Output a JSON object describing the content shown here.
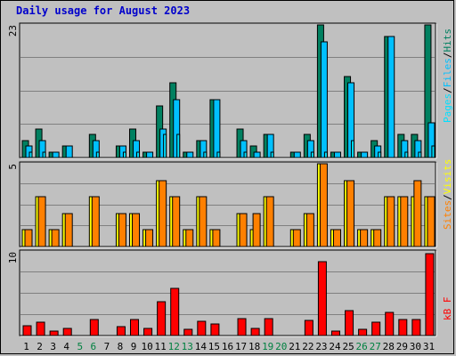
{
  "title": "Daily usage for August 2023",
  "colors": {
    "hits": "#008060",
    "files": "#00c0ff",
    "pages": "#00e0ff",
    "visits": "#ffff00",
    "sites": "#ff8000",
    "kbytes": "#ff0000",
    "weekday_label": "#000000",
    "weekend_label": "#008040"
  },
  "legend": {
    "panel1": [
      "Pages",
      "/",
      "Files",
      "/",
      "Hits"
    ],
    "panel2": [
      "Sites",
      "/",
      "Visits"
    ],
    "panel3": [
      "kB F"
    ]
  },
  "chart_data": [
    {
      "type": "bar",
      "name": "hits-files-pages",
      "ymax_label": "23",
      "ylim": [
        0,
        23
      ],
      "categories": [
        "1",
        "2",
        "3",
        "4",
        "5",
        "6",
        "7",
        "8",
        "9",
        "10",
        "11",
        "12",
        "13",
        "14",
        "15",
        "16",
        "17",
        "18",
        "19",
        "20",
        "21",
        "22",
        "23",
        "24",
        "25",
        "26",
        "27",
        "28",
        "29",
        "30",
        "31"
      ],
      "weekend_days": [
        5,
        6,
        12,
        13,
        19,
        20,
        26,
        27
      ],
      "series": [
        {
          "name": "Hits",
          "values": [
            3,
            5,
            1,
            2,
            0,
            4,
            0,
            2,
            5,
            1,
            9,
            13,
            1,
            3,
            10,
            0,
            5,
            2,
            4,
            0,
            1,
            4,
            23,
            1,
            14,
            1,
            3,
            21,
            4,
            4,
            23
          ]
        },
        {
          "name": "Files",
          "values": [
            2,
            3,
            1,
            2,
            0,
            3,
            0,
            2,
            3,
            1,
            5,
            10,
            1,
            3,
            10,
            0,
            3,
            1,
            4,
            0,
            1,
            3,
            20,
            1,
            13,
            1,
            2,
            21,
            3,
            3,
            6
          ]
        },
        {
          "name": "Pages",
          "values": [
            1,
            1,
            0,
            0,
            0,
            1,
            0,
            1,
            1,
            0,
            4,
            4,
            0,
            1,
            1,
            0,
            1,
            0,
            1,
            0,
            0,
            1,
            1,
            0,
            3,
            0,
            1,
            0,
            1,
            1,
            2
          ]
        }
      ]
    },
    {
      "type": "bar",
      "name": "visits-sites",
      "ymax_label": "5",
      "ylim": [
        0,
        5
      ],
      "categories": [
        "1",
        "2",
        "3",
        "4",
        "5",
        "6",
        "7",
        "8",
        "9",
        "10",
        "11",
        "12",
        "13",
        "14",
        "15",
        "16",
        "17",
        "18",
        "19",
        "20",
        "21",
        "22",
        "23",
        "24",
        "25",
        "26",
        "27",
        "28",
        "29",
        "30",
        "31"
      ],
      "series": [
        {
          "name": "Visits",
          "values": [
            1,
            3,
            1,
            2,
            0,
            3,
            0,
            2,
            2,
            1,
            4,
            3,
            1,
            3,
            1,
            0,
            2,
            1,
            3,
            0,
            1,
            2,
            5,
            1,
            4,
            1,
            1,
            3,
            3,
            3,
            3
          ]
        },
        {
          "name": "Sites",
          "values": [
            1,
            3,
            1,
            2,
            0,
            3,
            0,
            2,
            2,
            1,
            4,
            3,
            1,
            3,
            1,
            0,
            2,
            2,
            3,
            0,
            1,
            2,
            5,
            1,
            4,
            1,
            1,
            3,
            3,
            4,
            3
          ]
        }
      ]
    },
    {
      "type": "bar",
      "name": "kbytes",
      "ymax_label": "10",
      "ylim": [
        0,
        10
      ],
      "categories": [
        "1",
        "2",
        "3",
        "4",
        "5",
        "6",
        "7",
        "8",
        "9",
        "10",
        "11",
        "12",
        "13",
        "14",
        "15",
        "16",
        "17",
        "18",
        "19",
        "20",
        "21",
        "22",
        "23",
        "24",
        "25",
        "26",
        "27",
        "28",
        "29",
        "30",
        "31"
      ],
      "series": [
        {
          "name": "kB F",
          "values": [
            1.2,
            1.6,
            0.5,
            0.8,
            0,
            1.9,
            0,
            1.1,
            1.9,
            0.8,
            4.0,
            5.6,
            0.7,
            1.7,
            1.4,
            0,
            2.0,
            0.8,
            2.0,
            0,
            0,
            1.8,
            8.8,
            0.5,
            3.0,
            0.7,
            1.6,
            2.8,
            1.9,
            1.9,
            9.8
          ]
        }
      ]
    }
  ]
}
